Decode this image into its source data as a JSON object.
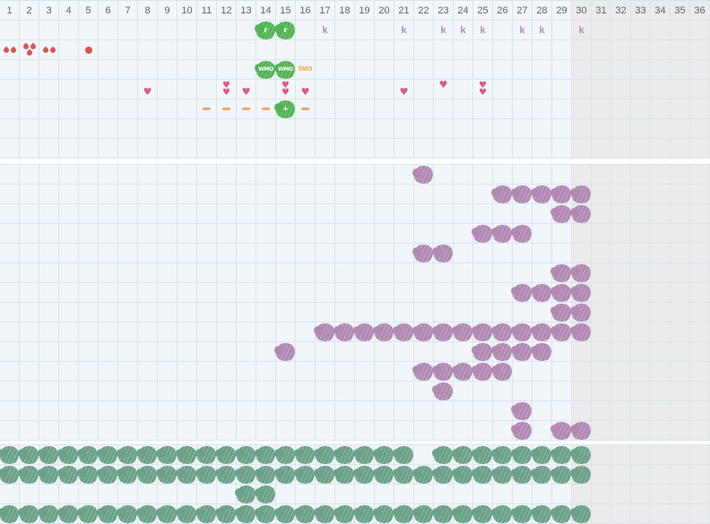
{
  "palette": {
    "cell_bg": "#f1f6fa",
    "cell_bg_shaded": "#ebebeb",
    "grid_line": "#d8e6f0",
    "grid_line_shaded": "#dbe4e9",
    "header_text": "#5c6670",
    "green": "#53b453",
    "purple": "#b189b3",
    "sage": "#6ca287",
    "heart_pink": "#dd5b82",
    "drop_red": "#d95454",
    "orange": "#f2a43a",
    "dash_orange": "#f2a46a",
    "k_purple": "#b78cba"
  },
  "glyphs": {
    "heart": "♥"
  },
  "layout": {
    "columns": 36,
    "shaded_from_column": 30,
    "cell_size": 22
  },
  "header": {
    "days": [
      "1",
      "2",
      "3",
      "4",
      "5",
      "6",
      "7",
      "8",
      "9",
      "10",
      "11",
      "12",
      "13",
      "14",
      "15",
      "16",
      "17",
      "18",
      "19",
      "20",
      "21",
      "22",
      "23",
      "24",
      "25",
      "26",
      "27",
      "28",
      "29",
      "30",
      "31",
      "32",
      "33",
      "34",
      "35",
      "36"
    ]
  },
  "sections": [
    {
      "name": "top",
      "rows": [
        {
          "cells": [
            {
              "col": 14,
              "type": "blob-green",
              "label": "r"
            },
            {
              "col": 15,
              "type": "blob-green",
              "label": "r"
            },
            {
              "col": 17,
              "type": "k",
              "label": "k"
            },
            {
              "col": 21,
              "type": "k",
              "label": "k"
            },
            {
              "col": 23,
              "type": "k",
              "label": "k"
            },
            {
              "col": 24,
              "type": "k",
              "label": "k"
            },
            {
              "col": 25,
              "type": "k",
              "label": "k"
            },
            {
              "col": 27,
              "type": "k",
              "label": "k"
            },
            {
              "col": 28,
              "type": "k",
              "label": "k"
            },
            {
              "col": 30,
              "type": "k",
              "label": "k"
            }
          ]
        },
        {
          "cells": [
            {
              "col": 1,
              "type": "drops2"
            },
            {
              "col": 2,
              "type": "drops3"
            },
            {
              "col": 3,
              "type": "drops2"
            },
            {
              "col": 4,
              "type": "drop"
            },
            {
              "col": 5,
              "type": "dot"
            },
            {
              "col": 30,
              "type": "drop"
            }
          ]
        },
        {
          "cells": [
            {
              "col": 14,
              "type": "blob-green",
              "label": "WMO"
            },
            {
              "col": 15,
              "type": "blob-green",
              "label": "WMO"
            },
            {
              "col": 16,
              "type": "text-orange",
              "label": "ŚMO"
            }
          ]
        },
        {
          "cells": [
            {
              "col": 8,
              "type": "heart",
              "variant": "low"
            },
            {
              "col": 12,
              "type": "heart2"
            },
            {
              "col": 13,
              "type": "heart",
              "variant": "low"
            },
            {
              "col": 15,
              "type": "heart2"
            },
            {
              "col": 16,
              "type": "heart",
              "variant": "low"
            },
            {
              "col": 21,
              "type": "heart",
              "variant": "low"
            },
            {
              "col": 23,
              "type": "heart",
              "variant": "high"
            },
            {
              "col": 25,
              "type": "heart2"
            }
          ]
        },
        {
          "cells": [
            {
              "col": 11,
              "type": "dash"
            },
            {
              "col": 12,
              "type": "dash"
            },
            {
              "col": 13,
              "type": "dash"
            },
            {
              "col": 14,
              "type": "dash"
            },
            {
              "col": 15,
              "type": "blob-green",
              "label": "+"
            },
            {
              "col": 16,
              "type": "dash"
            }
          ]
        },
        {
          "cells": []
        },
        {
          "cells": []
        }
      ]
    },
    {
      "name": "middle",
      "rows": [
        {
          "type": "blob-purple",
          "cols": [
            22
          ]
        },
        {
          "type": "blob-purple",
          "cols": [
            26,
            27,
            28,
            29,
            30
          ]
        },
        {
          "type": "blob-purple",
          "cols": [
            29,
            30
          ]
        },
        {
          "type": "blob-purple",
          "cols": [
            25,
            26,
            27
          ]
        },
        {
          "type": "blob-purple",
          "cols": [
            22,
            23
          ]
        },
        {
          "type": "blob-purple",
          "cols": [
            29,
            30
          ]
        },
        {
          "type": "blob-purple",
          "cols": [
            27,
            28,
            29,
            30
          ]
        },
        {
          "type": "blob-purple",
          "cols": [
            29,
            30
          ]
        },
        {
          "type": "blob-purple",
          "cols": [
            17,
            18,
            19,
            20,
            21,
            22,
            23,
            24,
            25,
            26,
            27,
            28,
            29,
            30
          ]
        },
        {
          "type": "blob-purple",
          "cols": [
            15,
            25,
            26,
            27,
            28
          ]
        },
        {
          "type": "blob-purple",
          "cols": [
            22,
            23,
            24,
            25,
            26
          ]
        },
        {
          "type": "blob-purple",
          "cols": [
            23
          ]
        },
        {
          "type": "blob-purple",
          "cols": [
            27
          ]
        },
        {
          "type": "blob-purple",
          "cols": [
            27,
            29,
            30
          ]
        }
      ]
    },
    {
      "name": "bottom",
      "rows": [
        {
          "type": "blob-sage",
          "cols": [
            1,
            2,
            3,
            4,
            5,
            6,
            7,
            8,
            9,
            10,
            11,
            12,
            13,
            14,
            15,
            16,
            17,
            18,
            19,
            20,
            21,
            23,
            24,
            25,
            26,
            27,
            28,
            29,
            30
          ]
        },
        {
          "type": "blob-sage",
          "cols": [
            1,
            2,
            3,
            4,
            5,
            6,
            7,
            8,
            9,
            10,
            11,
            12,
            13,
            14,
            15,
            16,
            17,
            18,
            19,
            20,
            21,
            22,
            23,
            24,
            25,
            26,
            27,
            28,
            29,
            30
          ]
        },
        {
          "type": "blob-sage",
          "cols": [
            13,
            14
          ]
        },
        {
          "type": "blob-sage",
          "cols": [
            1,
            2,
            3,
            4,
            5,
            6,
            7,
            8,
            9,
            10,
            11,
            12,
            13,
            14,
            15,
            16,
            17,
            18,
            19,
            20,
            21,
            22,
            23,
            24,
            25,
            26,
            27,
            28,
            29,
            30
          ]
        }
      ]
    }
  ]
}
